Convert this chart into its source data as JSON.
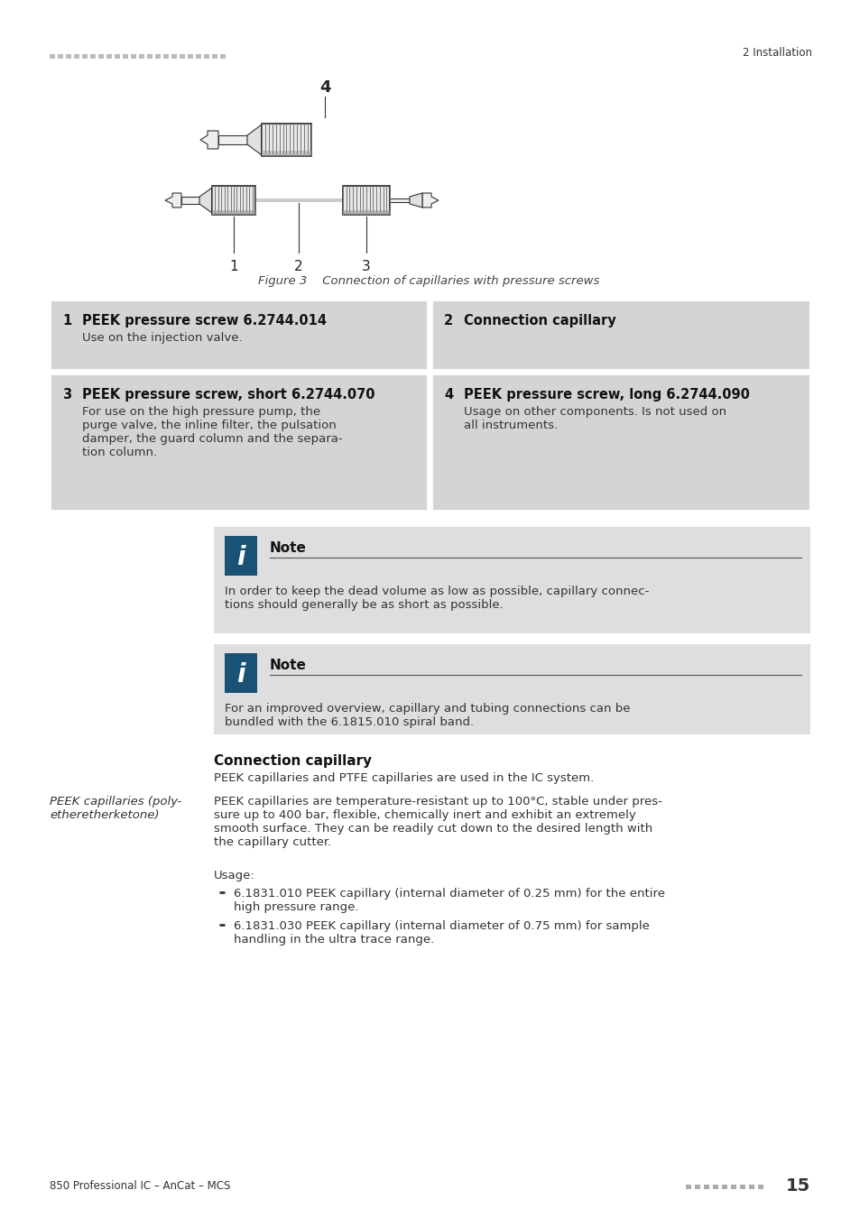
{
  "bg_color": "#ffffff",
  "header_dots_color": "#bbbbbb",
  "header_right_text": "2 Installation",
  "footer_left_text": "850 Professional IC – AnCat – MCS",
  "footer_right_text": "15",
  "footer_dots_color": "#aaaaaa",
  "figure_caption": "Figure 3    Connection of capillaries with pressure screws",
  "table_bg": "#d4d4d4",
  "cell1_num": "1",
  "cell1_title": "PEEK pressure screw 6.2744.014",
  "cell1_body": "Use on the injection valve.",
  "cell2_num": "2",
  "cell2_title": "Connection capillary",
  "cell2_body": "",
  "cell3_num": "3",
  "cell3_title": "PEEK pressure screw, short 6.2744.070",
  "cell3_body": "For use on the high pressure pump, the\npurge valve, the inline filter, the pulsation\ndamper, the guard column and the separa-\ntion column.",
  "cell4_num": "4",
  "cell4_title": "PEEK pressure screw, long 6.2744.090",
  "cell4_body": "Usage on other components. Is not used on\nall instruments.",
  "note1_title": "Note",
  "note1_body": "In order to keep the dead volume as low as possible, capillary connec-\ntions should generally be as short as possible.",
  "note2_title": "Note",
  "note2_body": "For an improved overview, capillary and tubing connections can be\nbundled with the 6.1815.010 spiral band.",
  "note_icon_color": "#1a5276",
  "note_bg": "#dedede",
  "section_title": "Connection capillary",
  "section_intro": "PEEK capillaries and PTFE capillaries are used in the IC system.",
  "side_label": "PEEK capillaries (poly-\netheretherketone)",
  "section_body": "PEEK capillaries are temperature-resistant up to 100°C, stable under pres-\nsure up to 400 bar, flexible, chemically inert and exhibit an extremely\nsmooth surface. They can be readily cut down to the desired length with\nthe capillary cutter.",
  "usage_label": "Usage:",
  "bullet1": "6.1831.010 PEEK capillary (internal diameter of 0.25 mm) for the entire\nhigh pressure range.",
  "bullet2": "6.1831.030 PEEK capillary (internal diameter of 0.75 mm) for sample\nhandling in the ultra trace range."
}
